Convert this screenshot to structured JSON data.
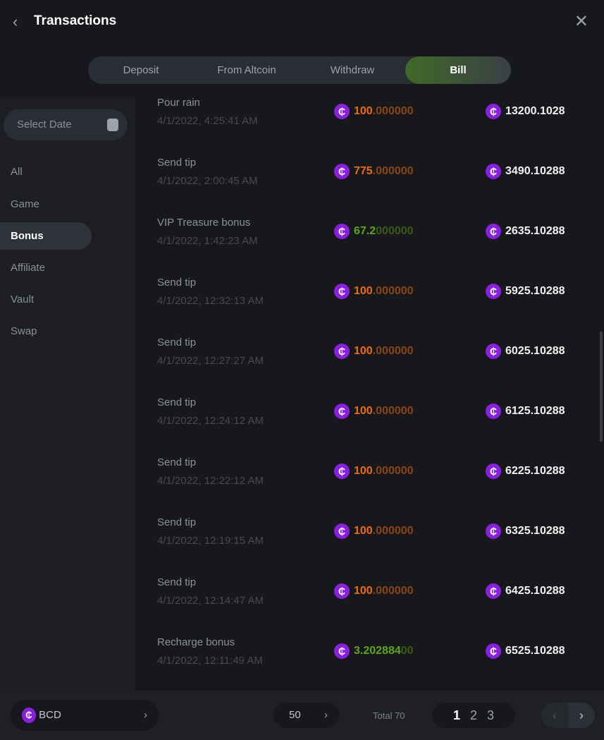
{
  "header": {
    "title": "Transactions",
    "back_icon": "chevron-left-icon",
    "close_icon": "close-icon"
  },
  "tabs": [
    {
      "label": "Deposit"
    },
    {
      "label": "From Altcoin"
    },
    {
      "label": "Withdraw"
    },
    {
      "label": "Bill",
      "active": true
    }
  ],
  "sidebar": {
    "date_placeholder": "Select Date",
    "items": [
      {
        "label": "All"
      },
      {
        "label": "Game"
      },
      {
        "label": "Bonus",
        "active": true
      },
      {
        "label": "Affiliate"
      },
      {
        "label": "Vault"
      },
      {
        "label": "Swap"
      }
    ]
  },
  "colors": {
    "coin": "#8a1fe0",
    "out": "#f06a0e",
    "in": "#5ea612",
    "active_tab": "#3e6a28"
  },
  "coin_symbol": "₵",
  "rows": [
    {
      "title": "Pour rain",
      "date": "4/1/2022, 4:25:41 AM",
      "amount_bright": "100",
      "amount_dim": ".000000",
      "type": "out",
      "balance": "13200.1028"
    },
    {
      "title": "Send tip",
      "date": "4/1/2022, 2:00:45 AM",
      "amount_bright": "775",
      "amount_dim": ".000000",
      "type": "out",
      "balance": "3490.10288"
    },
    {
      "title": "VIP Treasure bonus",
      "date": "4/1/2022, 1:42:23 AM",
      "amount_bright": "67.2",
      "amount_dim": "000000",
      "type": "in",
      "balance": "2635.10288"
    },
    {
      "title": "Send tip",
      "date": "4/1/2022, 12:32:13 AM",
      "amount_bright": "100",
      "amount_dim": ".000000",
      "type": "out",
      "balance": "5925.10288"
    },
    {
      "title": "Send tip",
      "date": "4/1/2022, 12:27:27 AM",
      "amount_bright": "100",
      "amount_dim": ".000000",
      "type": "out",
      "balance": "6025.10288"
    },
    {
      "title": "Send tip",
      "date": "4/1/2022, 12:24:12 AM",
      "amount_bright": "100",
      "amount_dim": ".000000",
      "type": "out",
      "balance": "6125.10288"
    },
    {
      "title": "Send tip",
      "date": "4/1/2022, 12:22:12 AM",
      "amount_bright": "100",
      "amount_dim": ".000000",
      "type": "out",
      "balance": "6225.10288"
    },
    {
      "title": "Send tip",
      "date": "4/1/2022, 12:19:15 AM",
      "amount_bright": "100",
      "amount_dim": ".000000",
      "type": "out",
      "balance": "6325.10288"
    },
    {
      "title": "Send tip",
      "date": "4/1/2022, 12:14:47 AM",
      "amount_bright": "100",
      "amount_dim": ".000000",
      "type": "out",
      "balance": "6425.10288"
    },
    {
      "title": "Recharge bonus",
      "date": "4/1/2022, 12:11:49 AM",
      "amount_bright": "3.202884",
      "amount_dim": "00",
      "type": "in",
      "balance": "6525.10288"
    }
  ],
  "footer": {
    "currency": "BCD",
    "per_page": "50",
    "total": "Total 70",
    "pages": [
      "1",
      "2",
      "3"
    ],
    "current_page": "1"
  }
}
